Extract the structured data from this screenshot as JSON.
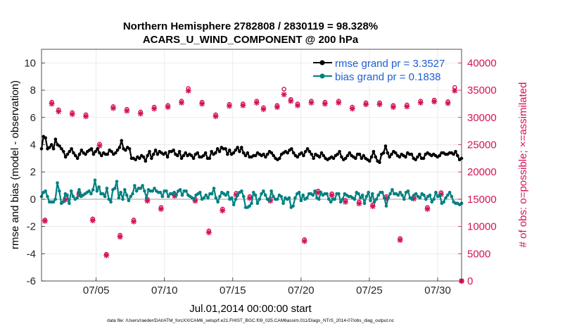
{
  "chart_data": {
    "type": "line",
    "title_line1": "Northern Hemisphere 2782808 / 2830119 = 98.328%",
    "title_line2": "ACARS_U_WIND_COMPONENT @ 200 hPa",
    "xlabel": "Jul.01,2014 00:00:00 start",
    "ylabel_left": "rmse and bias (model - observation)",
    "ylabel_right": "# of obs: o=possible; ×=assimilated",
    "footnote": "data file: /Users/raeder/DAI/ATM_forcXX/CAM6_setup/f.e21.FHIST_BGC.f09_025.CAM6assim.011/Diags_NTrS_2014-07/obs_diag_output.nc",
    "x_range": [
      1.0,
      31.75
    ],
    "ylim_left": [
      -6,
      11
    ],
    "ylim_right": [
      0,
      42500
    ],
    "x_ticks": [
      5,
      10,
      15,
      20,
      25,
      30
    ],
    "x_tick_labels": [
      "07/05",
      "07/10",
      "07/15",
      "07/20",
      "07/25",
      "07/30"
    ],
    "y_ticks_left": [
      -6,
      -4,
      -2,
      0,
      2,
      4,
      6,
      8,
      10
    ],
    "y_tick_labels_left": [
      "-6",
      "-4",
      "-2",
      "0",
      "2",
      "4",
      "6",
      "8",
      "10"
    ],
    "y_ticks_right": [
      0,
      5000,
      10000,
      15000,
      20000,
      25000,
      30000,
      35000,
      40000
    ],
    "y_tick_labels_right": [
      "0",
      "5000",
      "10000",
      "15000",
      "20000",
      "25000",
      "30000",
      "35000",
      "40000"
    ],
    "legend": [
      {
        "label": "rmse grand pr = 3.3527",
        "color": "#000000"
      },
      {
        "label": "bias grand pr = 0.1838",
        "color": "#008080"
      }
    ],
    "legend_location": "top-right",
    "colors": {
      "rmse": "#000000",
      "bias": "#008080",
      "obs": "#d41159",
      "label_blue": "#1f5fd6"
    },
    "series": [
      {
        "name": "rmse",
        "axis": "left",
        "values": [
          3.7,
          4.6,
          4.5,
          3.7,
          3.8,
          4.0,
          3.7,
          4.4,
          4.0,
          3.9,
          3.7,
          3.5,
          3.1,
          3.3,
          3.5,
          3.7,
          3.4,
          3.2,
          3.0,
          3.3,
          3.6,
          3.4,
          3.3,
          3.5,
          3.6,
          3.7,
          3.3,
          3.5,
          3.7,
          3.4,
          3.2,
          3.4,
          3.3,
          3.3,
          3.6,
          3.5,
          3.3,
          3.4,
          3.6,
          3.8,
          4.3,
          3.7,
          3.6,
          3.8,
          3.7,
          3.0,
          3.0,
          2.9,
          3.1,
          3.0,
          3.2,
          3.1,
          2.8,
          3.2,
          3.5,
          3.0,
          3.3,
          3.6,
          3.3,
          3.5,
          3.4,
          3.3,
          3.4,
          3.1,
          3.5,
          3.5,
          3.6,
          3.3,
          3.2,
          3.5,
          3.0,
          3.2,
          3.4,
          3.2,
          3.3,
          3.2,
          3.0,
          3.3,
          3.4,
          3.1,
          3.1,
          3.2,
          3.4,
          3.0,
          3.0,
          3.5,
          3.3,
          3.4,
          3.7,
          3.5,
          3.8,
          3.7,
          3.7,
          3.3,
          3.6,
          3.3,
          3.4,
          3.6,
          3.8,
          3.5,
          3.8,
          3.4,
          3.2,
          3.4,
          3.1,
          3.1,
          3.2,
          3.2,
          3.4,
          3.3,
          3.2,
          3.3,
          3.1,
          3.3,
          3.5,
          3.4,
          3.2,
          3.0,
          2.9,
          3.0,
          3.3,
          3.4,
          3.5,
          3.4,
          3.6,
          3.7,
          3.4,
          3.2,
          3.1,
          3.3,
          3.4,
          3.2,
          3.5,
          3.7,
          3.5,
          3.3,
          3.0,
          3.3,
          3.2,
          3.1,
          3.4,
          3.2,
          3.0,
          2.9,
          3.0,
          3.1,
          3.0,
          3.2,
          3.3,
          3.5,
          3.1,
          2.9,
          3.0,
          3.2,
          3.4,
          3.2,
          3.1,
          3.0,
          3.3,
          3.3,
          3.0,
          3.2,
          3.0,
          2.9,
          2.8,
          3.1,
          3.5,
          3.1,
          2.8,
          2.7,
          3.3,
          3.4,
          3.9,
          3.4,
          3.1,
          3.3,
          3.5,
          3.4,
          3.2,
          3.1,
          3.3,
          3.2,
          3.1,
          3.4,
          3.3,
          3.3,
          3.0,
          2.9,
          3.1,
          3.3,
          3.0,
          3.0,
          3.3,
          3.4,
          3.3,
          3.2,
          3.3,
          3.2,
          3.1,
          3.2,
          3.4,
          3.4,
          3.3,
          3.3,
          3.4,
          3.4,
          3.3,
          3.5,
          3.2,
          2.9,
          3.0
        ]
      },
      {
        "name": "bias",
        "axis": "left",
        "values": [
          0.2,
          0.5,
          0.6,
          0.2,
          -0.2,
          -0.2,
          -0.2,
          0.0,
          1.2,
          0.6,
          -0.3,
          -0.2,
          0.4,
          0.3,
          -0.3,
          0.6,
          0.2,
          0.0,
          0.1,
          0.7,
          0.2,
          0.3,
          0.4,
          0.5,
          0.6,
          0.4,
          0.7,
          1.4,
          0.6,
          0.9,
          0.4,
          0.4,
          0.2,
          0.8,
          0.0,
          -0.2,
          0.7,
          0.8,
          1.3,
          0.1,
          0.5,
          0.0,
          0.7,
          0.3,
          -0.1,
          0.2,
          0.4,
          1.0,
          0.6,
          0.8,
          0.8,
          1.0,
          0.6,
          0.1,
          0.7,
          0.6,
          0.6,
          0.8,
          0.6,
          0.5,
          0.5,
          0.2,
          0.6,
          0.6,
          0.2,
          0.4,
          0.4,
          0.5,
          0.3,
          0.6,
          0.7,
          0.3,
          0.6,
          0.6,
          0.3,
          0.2,
          0.1,
          0.0,
          0.3,
          0.4,
          0.5,
          0.0,
          0.1,
          0.3,
          0.1,
          0.4,
          0.4,
          0.8,
          0.1,
          -0.2,
          0.2,
          0.5,
          0.4,
          0.3,
          0.5,
          0.0,
          0.1,
          -0.4,
          0.0,
          0.3,
          0.5,
          0.6,
          0.2,
          -0.6,
          -0.6,
          -0.5,
          -0.3,
          0.5,
          0.3,
          -0.3,
          0.0,
          0.4,
          0.6,
          0.3,
          0.0,
          -0.1,
          0.6,
          0.2,
          0.0,
          0.0,
          0.3,
          0.2,
          -0.3,
          0.1,
          0.0,
          0.1,
          -0.6,
          -0.5,
          0.1,
          0.4,
          0.5,
          -0.1,
          0.3,
          0.0,
          0.1,
          0.4,
          0.4,
          0.3,
          0.6,
          0.1,
          0.0,
          0.5,
          0.3,
          0.4,
          0.4,
          0.0,
          -0.2,
          0.0,
          0.0,
          0.4,
          0.4,
          -0.2,
          0.0,
          0.4,
          0.3,
          0.2,
          0.2,
          0.1,
          0.0,
          0.5,
          0.4,
          0.1,
          0.3,
          -0.3,
          0.2,
          0.5,
          -0.1,
          0.4,
          -0.2,
          0.0,
          0.3,
          0.5,
          0.5,
          0.1,
          -0.5,
          0.1,
          0.4,
          0.7,
          0.4,
          0.4,
          0.3,
          0.5,
          0.3,
          0.0,
          0.5,
          0.6,
          0.1,
          0.0,
          0.3,
          0.4,
          0.2,
          0.1,
          0.4,
          0.3,
          0.0,
          0.2,
          0.3,
          -0.2,
          0.0,
          0.5,
          0.2,
          0.3,
          -0.3,
          -0.2,
          0.1,
          0.3,
          0.5,
          0.2,
          -0.2,
          -0.3,
          -0.3,
          -0.4,
          -0.3
        ]
      },
      {
        "name": "obs_possible",
        "axis": "right",
        "marker": "o",
        "points": [
          [
            1.25,
            11200
          ],
          [
            1.75,
            32800
          ],
          [
            2.25,
            31400
          ],
          [
            2.75,
            15200
          ],
          [
            3.25,
            30900
          ],
          [
            3.75,
            16200
          ],
          [
            4.25,
            30500
          ],
          [
            4.75,
            11400
          ],
          [
            5.25,
            25100
          ],
          [
            5.75,
            4900
          ],
          [
            6.25,
            32000
          ],
          [
            6.75,
            8400
          ],
          [
            7.25,
            31500
          ],
          [
            7.75,
            11200
          ],
          [
            8.25,
            31000
          ],
          [
            8.75,
            15000
          ],
          [
            9.25,
            31900
          ],
          [
            9.75,
            13500
          ],
          [
            10.25,
            32200
          ],
          [
            10.75,
            15900
          ],
          [
            11.25,
            33000
          ],
          [
            11.75,
            35300
          ],
          [
            12.25,
            15000
          ],
          [
            12.75,
            32800
          ],
          [
            13.25,
            9200
          ],
          [
            13.75,
            30500
          ],
          [
            14.25,
            13200
          ],
          [
            14.75,
            32400
          ],
          [
            15.25,
            16100
          ],
          [
            15.75,
            32500
          ],
          [
            16.25,
            15500
          ],
          [
            16.75,
            33000
          ],
          [
            17.25,
            31800
          ],
          [
            17.75,
            15000
          ],
          [
            18.25,
            32200
          ],
          [
            18.75,
            35200
          ],
          [
            19.25,
            33300
          ],
          [
            19.75,
            32500
          ],
          [
            20.25,
            7600
          ],
          [
            20.75,
            33000
          ],
          [
            21.25,
            16500
          ],
          [
            21.75,
            32800
          ],
          [
            22.25,
            16000
          ],
          [
            22.75,
            33000
          ],
          [
            23.25,
            14800
          ],
          [
            23.75,
            31900
          ],
          [
            24.25,
            14500
          ],
          [
            24.75,
            32700
          ],
          [
            25.25,
            14000
          ],
          [
            25.75,
            32700
          ],
          [
            26.25,
            15500
          ],
          [
            26.75,
            32200
          ],
          [
            27.25,
            7800
          ],
          [
            27.75,
            32300
          ],
          [
            28.25,
            15400
          ],
          [
            28.75,
            33000
          ],
          [
            29.25,
            13500
          ],
          [
            29.75,
            33200
          ],
          [
            30.25,
            16200
          ],
          [
            30.75,
            32900
          ],
          [
            31.25,
            35500
          ],
          [
            31.75,
            0
          ]
        ]
      },
      {
        "name": "obs_assimilated",
        "axis": "right",
        "marker": "x",
        "points": [
          [
            1.25,
            11000
          ],
          [
            1.75,
            32500
          ],
          [
            2.25,
            31100
          ],
          [
            2.75,
            14900
          ],
          [
            3.25,
            30600
          ],
          [
            3.75,
            15900
          ],
          [
            4.25,
            30200
          ],
          [
            4.75,
            11100
          ],
          [
            5.25,
            24800
          ],
          [
            5.75,
            4700
          ],
          [
            6.25,
            31700
          ],
          [
            6.75,
            8100
          ],
          [
            7.25,
            31200
          ],
          [
            7.75,
            10900
          ],
          [
            8.25,
            30700
          ],
          [
            8.75,
            14700
          ],
          [
            9.25,
            31600
          ],
          [
            9.75,
            13200
          ],
          [
            10.25,
            31900
          ],
          [
            10.75,
            15600
          ],
          [
            11.25,
            32700
          ],
          [
            11.75,
            34900
          ],
          [
            12.25,
            14700
          ],
          [
            12.75,
            32500
          ],
          [
            13.25,
            8900
          ],
          [
            13.75,
            30200
          ],
          [
            14.25,
            12900
          ],
          [
            14.75,
            32100
          ],
          [
            15.25,
            15800
          ],
          [
            15.75,
            32200
          ],
          [
            16.25,
            15200
          ],
          [
            16.75,
            32700
          ],
          [
            17.25,
            31500
          ],
          [
            17.75,
            14700
          ],
          [
            18.25,
            31900
          ],
          [
            18.75,
            34200
          ],
          [
            19.25,
            33000
          ],
          [
            19.75,
            32200
          ],
          [
            20.25,
            7300
          ],
          [
            20.75,
            32700
          ],
          [
            21.25,
            16200
          ],
          [
            21.75,
            32500
          ],
          [
            22.25,
            15700
          ],
          [
            22.75,
            32700
          ],
          [
            23.25,
            14500
          ],
          [
            23.75,
            31600
          ],
          [
            24.25,
            14200
          ],
          [
            24.75,
            32400
          ],
          [
            25.25,
            13700
          ],
          [
            25.75,
            32400
          ],
          [
            26.25,
            15200
          ],
          [
            26.75,
            31900
          ],
          [
            27.25,
            7500
          ],
          [
            27.75,
            32000
          ],
          [
            28.25,
            15100
          ],
          [
            28.75,
            32700
          ],
          [
            29.25,
            13200
          ],
          [
            29.75,
            32900
          ],
          [
            30.25,
            15900
          ],
          [
            30.75,
            32600
          ],
          [
            31.25,
            34900
          ],
          [
            31.75,
            0
          ]
        ]
      }
    ]
  }
}
